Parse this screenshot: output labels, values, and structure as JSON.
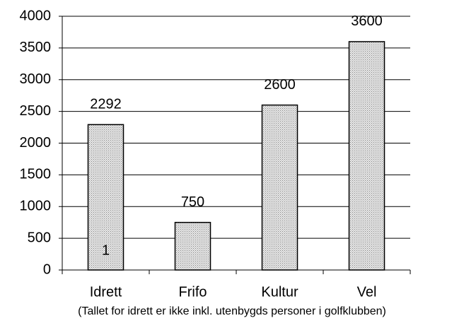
{
  "chart_data": {
    "type": "bar",
    "categories": [
      "Idrett",
      "Frifo",
      "Kultur",
      "Vel"
    ],
    "values": [
      2292,
      750,
      2600,
      3600
    ],
    "color": "#c8c8c8",
    "ylim": [
      0,
      4000
    ],
    "yticks": [
      0,
      500,
      1000,
      1500,
      2000,
      2500,
      3000,
      3500,
      4000
    ],
    "grid": true,
    "annotation": "1",
    "caption": "(Tallet for idrett er ikke inkl. utenbygds personer i golfklubben)"
  }
}
